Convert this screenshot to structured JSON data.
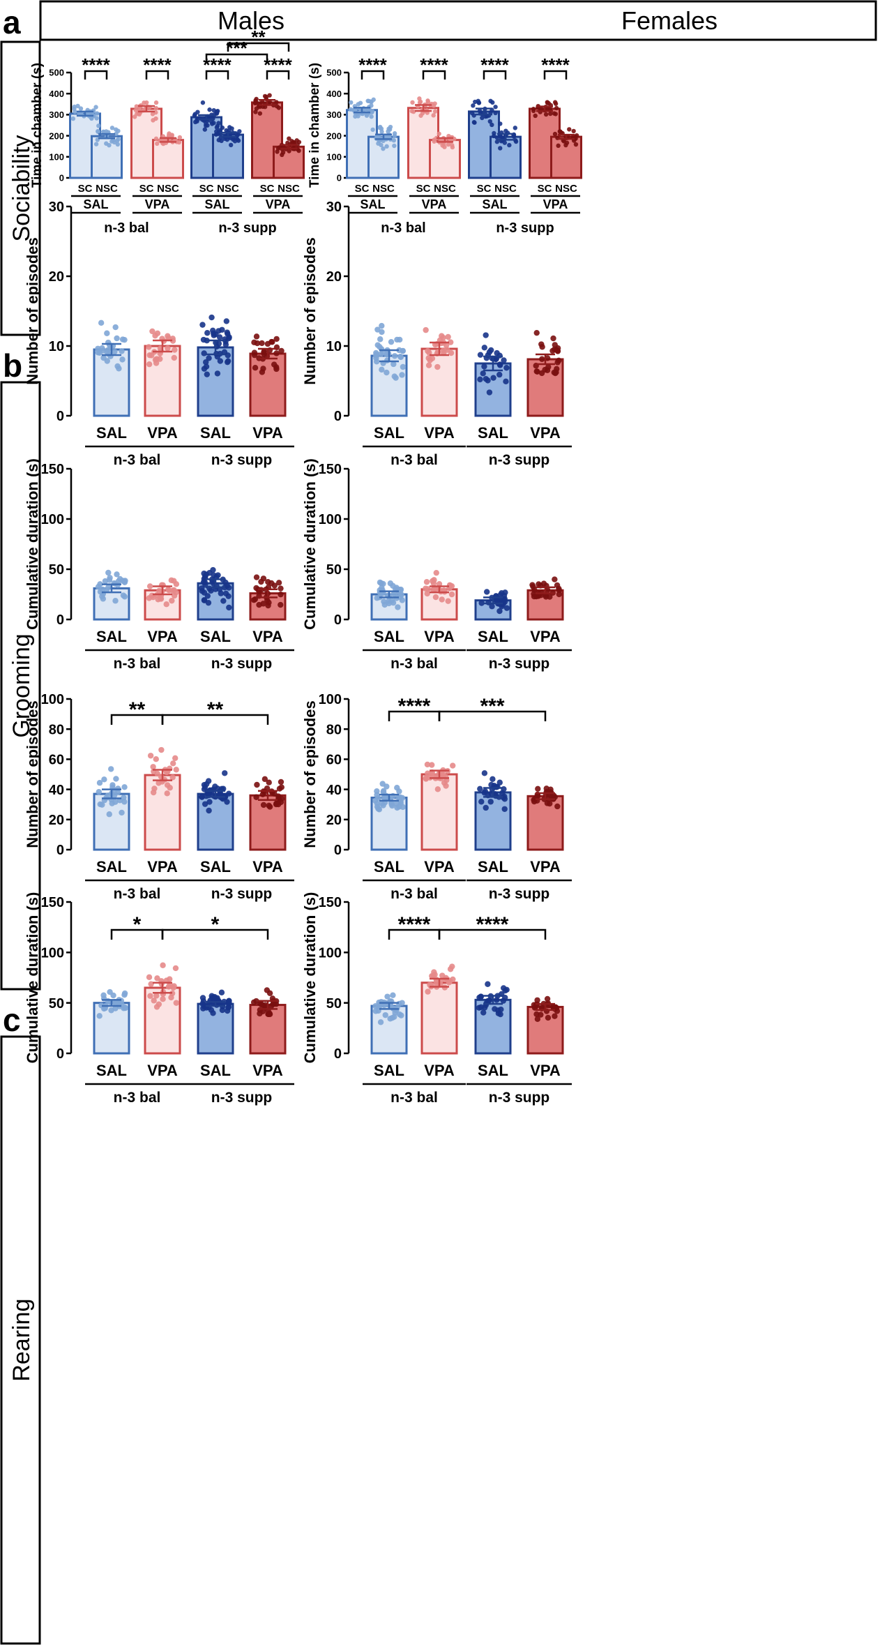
{
  "header": {
    "males": "Males",
    "females": "Females"
  },
  "colors": {
    "salBalFill": "#dbe6f4",
    "salBalEdge": "#3f6fb5",
    "salBalDot": "#7fa6d6",
    "vpaBalFill": "#fbe3e3",
    "vpaBalEdge": "#cc4b4b",
    "vpaBalDot": "#e58a8a",
    "salSupFill": "#93b3e0",
    "salSupEdge": "#1f3f8c",
    "salSupDot": "#17348a",
    "vpaSupFill": "#e07b7b",
    "vpaSupEdge": "#8e1b1b",
    "vpaSupDot": "#7a1010"
  },
  "panels": [
    {
      "letter": "a",
      "label": "Sociability"
    },
    {
      "letter": "b",
      "label": "Grooming"
    },
    {
      "letter": "c",
      "label": "Rearing"
    }
  ],
  "chart_data": [
    {
      "type": "bar",
      "id": "soc-m",
      "title": "Males — Sociability",
      "ylabel": "Time in chamber (s)",
      "ylim": [
        0,
        500
      ],
      "ticks": [
        0,
        100,
        200,
        300,
        400,
        500
      ],
      "bars": [
        {
          "x": "SC",
          "value": 305,
          "sem": 10,
          "n": 26
        },
        {
          "x": "NSC",
          "value": 198,
          "sem": 10,
          "n": 26
        },
        {
          "x": "SC",
          "value": 328,
          "sem": 13,
          "n": 24
        },
        {
          "x": "NSC",
          "value": 180,
          "sem": 9,
          "n": 24
        },
        {
          "x": "SC",
          "value": 288,
          "sem": 10,
          "n": 38
        },
        {
          "x": "NSC",
          "value": 205,
          "sem": 10,
          "n": 38
        },
        {
          "x": "SC",
          "value": 358,
          "sem": 12,
          "n": 26
        },
        {
          "x": "NSC",
          "value": 148,
          "sem": 9,
          "n": 26
        }
      ],
      "groups": [
        "SAL",
        "VPA",
        "SAL",
        "VPA"
      ],
      "diets": [
        "n-3 bal",
        "n-3 supp"
      ],
      "sig": [
        {
          "from": 0,
          "to": 1,
          "label": "****"
        },
        {
          "from": 2,
          "to": 3,
          "label": "****"
        },
        {
          "from": 4,
          "to": 5,
          "label": "****"
        },
        {
          "from": 6,
          "to": 7,
          "label": "****"
        },
        {
          "from": 4,
          "to": 6,
          "label": "***"
        },
        {
          "from": 5,
          "to": 7,
          "label": "**"
        }
      ]
    },
    {
      "type": "bar",
      "id": "soc-f",
      "title": "Females — Sociability",
      "ylabel": "Time in chamber (s)",
      "ylim": [
        0,
        500
      ],
      "ticks": [
        0,
        100,
        200,
        300,
        400,
        500
      ],
      "bars": [
        {
          "x": "SC",
          "value": 322,
          "sem": 11,
          "n": 35
        },
        {
          "x": "NSC",
          "value": 195,
          "sem": 11,
          "n": 35
        },
        {
          "x": "SC",
          "value": 332,
          "sem": 14,
          "n": 24
        },
        {
          "x": "NSC",
          "value": 180,
          "sem": 9,
          "n": 24
        },
        {
          "x": "SC",
          "value": 315,
          "sem": 14,
          "n": 26
        },
        {
          "x": "NSC",
          "value": 195,
          "sem": 14,
          "n": 26
        },
        {
          "x": "SC",
          "value": 328,
          "sem": 11,
          "n": 26
        },
        {
          "x": "NSC",
          "value": 195,
          "sem": 10,
          "n": 26
        }
      ],
      "groups": [
        "SAL",
        "VPA",
        "SAL",
        "VPA"
      ],
      "diets": [
        "n-3 bal",
        "n-3 supp"
      ],
      "sig": [
        {
          "from": 0,
          "to": 1,
          "label": "****"
        },
        {
          "from": 2,
          "to": 3,
          "label": "****"
        },
        {
          "from": 4,
          "to": 5,
          "label": "****"
        },
        {
          "from": 6,
          "to": 7,
          "label": "****"
        }
      ]
    },
    {
      "type": "bar",
      "id": "gre-m",
      "title": "Males — Grooming episodes",
      "ylabel": "Number of episodes",
      "ylim": [
        0,
        30
      ],
      "ticks": [
        0,
        10,
        20,
        30
      ],
      "bars": [
        {
          "x": "SAL",
          "value": 9.5,
          "sem": 0.8,
          "n": 26
        },
        {
          "x": "VPA",
          "value": 10,
          "sem": 0.8,
          "n": 24
        },
        {
          "x": "SAL",
          "value": 9.8,
          "sem": 1,
          "n": 38
        },
        {
          "x": "VPA",
          "value": 8.9,
          "sem": 0.7,
          "n": 26
        }
      ],
      "diets": [
        "n-3 bal",
        "n-3 supp"
      ],
      "sig": []
    },
    {
      "type": "bar",
      "id": "gre-f",
      "title": "Females — Grooming episodes",
      "ylabel": "Number of episodes",
      "ylim": [
        0,
        30
      ],
      "ticks": [
        0,
        10,
        20,
        30
      ],
      "bars": [
        {
          "x": "SAL",
          "value": 8.6,
          "sem": 0.8,
          "n": 35
        },
        {
          "x": "VPA",
          "value": 9.6,
          "sem": 0.9,
          "n": 24
        },
        {
          "x": "SAL",
          "value": 7.5,
          "sem": 1,
          "n": 26
        },
        {
          "x": "VPA",
          "value": 8.1,
          "sem": 0.7,
          "n": 26
        }
      ],
      "diets": [
        "n-3 bal",
        "n-3 supp"
      ],
      "sig": []
    },
    {
      "type": "bar",
      "id": "grd-m",
      "title": "Males — Grooming duration",
      "ylabel": "Cumulative duration (s)",
      "ylim": [
        0,
        150
      ],
      "ticks": [
        0,
        50,
        100,
        150
      ],
      "bars": [
        {
          "x": "SAL",
          "value": 31,
          "sem": 4,
          "n": 26
        },
        {
          "x": "VPA",
          "value": 29,
          "sem": 4,
          "n": 24
        },
        {
          "x": "SAL",
          "value": 36,
          "sem": 4,
          "n": 38
        },
        {
          "x": "VPA",
          "value": 26,
          "sem": 4,
          "n": 26
        }
      ],
      "diets": [
        "n-3 bal",
        "n-3 supp"
      ],
      "sig": []
    },
    {
      "type": "bar",
      "id": "grd-f",
      "title": "Females — Grooming duration",
      "ylabel": "Cumulative duration (s)",
      "ylim": [
        0,
        150
      ],
      "ticks": [
        0,
        50,
        100,
        150
      ],
      "bars": [
        {
          "x": "SAL",
          "value": 25,
          "sem": 3,
          "n": 35
        },
        {
          "x": "VPA",
          "value": 30,
          "sem": 3,
          "n": 24
        },
        {
          "x": "SAL",
          "value": 19,
          "sem": 3,
          "n": 26
        },
        {
          "x": "VPA",
          "value": 29,
          "sem": 3,
          "n": 26
        }
      ],
      "diets": [
        "n-3 bal",
        "n-3 supp"
      ],
      "sig": []
    },
    {
      "type": "bar",
      "id": "ree-m",
      "title": "Males — Rearing episodes",
      "ylabel": "Number of episodes",
      "ylim": [
        0,
        100
      ],
      "ticks": [
        0,
        20,
        40,
        60,
        80,
        100
      ],
      "bars": [
        {
          "x": "SAL",
          "value": 37,
          "sem": 3,
          "n": 26
        },
        {
          "x": "VPA",
          "value": 49.5,
          "sem": 3.5,
          "n": 24
        },
        {
          "x": "SAL",
          "value": 37,
          "sem": 2,
          "n": 38
        },
        {
          "x": "VPA",
          "value": 36,
          "sem": 3,
          "n": 26
        }
      ],
      "diets": [
        "n-3 bal",
        "n-3 supp"
      ],
      "sig": [
        {
          "from": 0,
          "to": 1,
          "label": "**"
        },
        {
          "from": 1,
          "to": 3,
          "label": "**"
        }
      ]
    },
    {
      "type": "bar",
      "id": "ree-f",
      "title": "Females — Rearing episodes",
      "ylabel": "Number of episodes",
      "ylim": [
        0,
        100
      ],
      "ticks": [
        0,
        20,
        40,
        60,
        80,
        100
      ],
      "bars": [
        {
          "x": "SAL",
          "value": 34.5,
          "sem": 2,
          "n": 35
        },
        {
          "x": "VPA",
          "value": 50,
          "sem": 2.5,
          "n": 24
        },
        {
          "x": "SAL",
          "value": 38,
          "sem": 3,
          "n": 26
        },
        {
          "x": "VPA",
          "value": 35.5,
          "sem": 2,
          "n": 26
        }
      ],
      "diets": [
        "n-3 bal",
        "n-3 supp"
      ],
      "sig": [
        {
          "from": 0,
          "to": 1,
          "label": "****"
        },
        {
          "from": 1,
          "to": 3,
          "label": "***"
        }
      ]
    },
    {
      "type": "bar",
      "id": "red-m",
      "title": "Males — Rearing duration",
      "ylabel": "Cumulative duration (s)",
      "ylim": [
        0,
        150
      ],
      "ticks": [
        0,
        50,
        100,
        150
      ],
      "bars": [
        {
          "x": "SAL",
          "value": 50,
          "sem": 3,
          "n": 26
        },
        {
          "x": "VPA",
          "value": 65,
          "sem": 5,
          "n": 24
        },
        {
          "x": "SAL",
          "value": 49,
          "sem": 2,
          "n": 38
        },
        {
          "x": "VPA",
          "value": 48,
          "sem": 4,
          "n": 26
        }
      ],
      "diets": [
        "n-3 bal",
        "n-3 supp"
      ],
      "sig": [
        {
          "from": 0,
          "to": 1,
          "label": "*"
        },
        {
          "from": 1,
          "to": 3,
          "label": "*"
        }
      ]
    },
    {
      "type": "bar",
      "id": "red-f",
      "title": "Females — Rearing duration",
      "ylabel": "Cumulative duration (s)",
      "ylim": [
        0,
        150
      ],
      "ticks": [
        0,
        50,
        100,
        150
      ],
      "bars": [
        {
          "x": "SAL",
          "value": 47,
          "sem": 3,
          "n": 35
        },
        {
          "x": "VPA",
          "value": 70,
          "sem": 4,
          "n": 24
        },
        {
          "x": "SAL",
          "value": 53,
          "sem": 4,
          "n": 26
        },
        {
          "x": "VPA",
          "value": 46,
          "sem": 3,
          "n": 26
        }
      ],
      "diets": [
        "n-3 bal",
        "n-3 supp"
      ],
      "sig": [
        {
          "from": 0,
          "to": 1,
          "label": "****"
        },
        {
          "from": 1,
          "to": 3,
          "label": "****"
        }
      ]
    }
  ]
}
